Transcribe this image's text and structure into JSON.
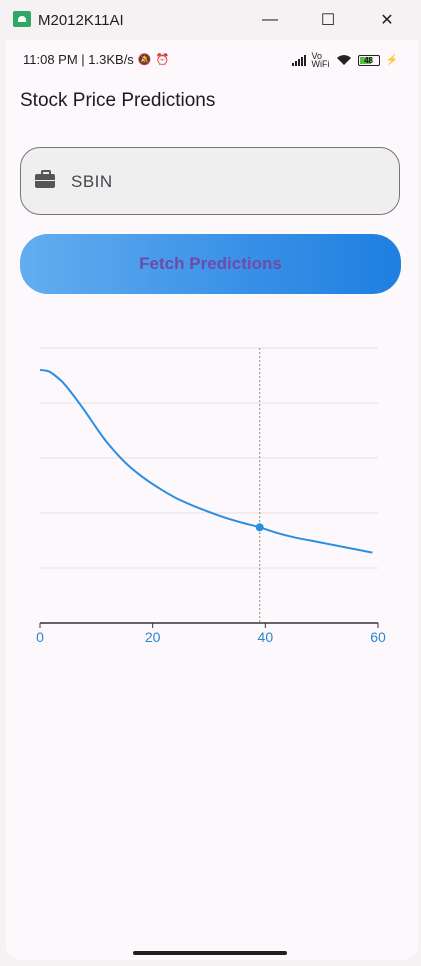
{
  "window": {
    "title": "M2012K11AI",
    "minimize_glyph": "—",
    "maximize_glyph": "☐",
    "close_glyph": "✕"
  },
  "status": {
    "time_speed": "11:08 PM | 1.3KB/s",
    "mute_glyph": "🔕",
    "alarm_glyph": "⏰",
    "volte_label": "Vo\nWiFi",
    "battery_level": "48",
    "charging_glyph": "⚡"
  },
  "app": {
    "title": "Stock Price Predictions",
    "input": {
      "value": "SBIN",
      "icon": "briefcase-icon"
    },
    "fetch_button_label": "Fetch Predictions"
  },
  "colors": {
    "line": "#2a8fe0",
    "accent_text": "#6f4aa8",
    "axis_labels": "#2a88d0"
  },
  "chart_data": {
    "type": "line",
    "title": "",
    "xlabel": "",
    "ylabel": "",
    "xlim": [
      0,
      60
    ],
    "x_ticks": [
      "0",
      "20",
      "40",
      "60"
    ],
    "grid": true,
    "series": [
      {
        "x": [
          0,
          1,
          2,
          4,
          6,
          8,
          10,
          12,
          15,
          18,
          21,
          24,
          27,
          30,
          33,
          36,
          39,
          42,
          45,
          48,
          51,
          54,
          57,
          59
        ],
        "y": [
          4.6,
          4.59,
          4.55,
          4.38,
          4.13,
          3.85,
          3.55,
          3.27,
          2.93,
          2.67,
          2.46,
          2.28,
          2.14,
          2.02,
          1.91,
          1.82,
          1.74,
          1.64,
          1.56,
          1.5,
          1.44,
          1.38,
          1.32,
          1.28
        ]
      }
    ],
    "highlight_point": {
      "x": 39,
      "y": 1.74
    }
  }
}
